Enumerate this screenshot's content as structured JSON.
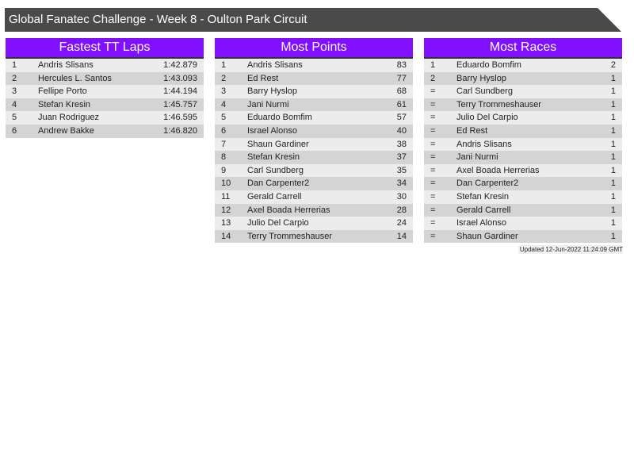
{
  "title": "Global Fanatec Challenge - Week 8 - Oulton Park Circuit",
  "tables": [
    {
      "heading": "Fastest TT Laps",
      "rows": [
        [
          "1",
          "Andris Slisans",
          "1:42.879"
        ],
        [
          "2",
          "Hercules L. Santos",
          "1:43.093"
        ],
        [
          "3",
          "Fellipe Porto",
          "1:44.194"
        ],
        [
          "4",
          "Stefan Kresin",
          "1:45.757"
        ],
        [
          "5",
          "Juan Rodriguez",
          "1:46.595"
        ],
        [
          "6",
          "Andrew Bakke",
          "1:46.820"
        ]
      ]
    },
    {
      "heading": "Most Points",
      "rows": [
        [
          "1",
          "Andris Slisans",
          "83"
        ],
        [
          "2",
          "Ed Rest",
          "77"
        ],
        [
          "3",
          "Barry Hyslop",
          "68"
        ],
        [
          "4",
          "Jani Nurmi",
          "61"
        ],
        [
          "5",
          "Eduardo Bomfim",
          "57"
        ],
        [
          "6",
          "Israel Alonso",
          "40"
        ],
        [
          "7",
          "Shaun Gardiner",
          "38"
        ],
        [
          "8",
          "Stefan Kresin",
          "37"
        ],
        [
          "9",
          "Carl Sundberg",
          "35"
        ],
        [
          "10",
          "Dan Carpenter2",
          "34"
        ],
        [
          "11",
          "Gerald Carrell",
          "30"
        ],
        [
          "12",
          "Axel Boada Herrerias",
          "28"
        ],
        [
          "13",
          "Julio Del Carpio",
          "24"
        ],
        [
          "14",
          "Terry Trommeshauser",
          "14"
        ]
      ]
    },
    {
      "heading": "Most Races",
      "rows": [
        [
          "1",
          "Eduardo Bomfim",
          "2"
        ],
        [
          "2",
          "Barry Hyslop",
          "1"
        ],
        [
          "=",
          "Carl Sundberg",
          "1"
        ],
        [
          "=",
          "Terry Trommeshauser",
          "1"
        ],
        [
          "=",
          "Julio Del Carpio",
          "1"
        ],
        [
          "=",
          "Ed Rest",
          "1"
        ],
        [
          "=",
          "Andris Slisans",
          "1"
        ],
        [
          "=",
          "Jani Nurmi",
          "1"
        ],
        [
          "=",
          "Axel Boada Herrerias",
          "1"
        ],
        [
          "=",
          "Dan Carpenter2",
          "1"
        ],
        [
          "=",
          "Stefan Kresin",
          "1"
        ],
        [
          "=",
          "Gerald Carrell",
          "1"
        ],
        [
          "=",
          "Israel Alonso",
          "1"
        ],
        [
          "=",
          "Shaun Gardiner",
          "1"
        ]
      ]
    }
  ],
  "updated": "Updated 12-Jun-2022 11:24:09 GMT",
  "colors": {
    "header": "#8010ff",
    "title_bar": "#4a4a4a"
  }
}
